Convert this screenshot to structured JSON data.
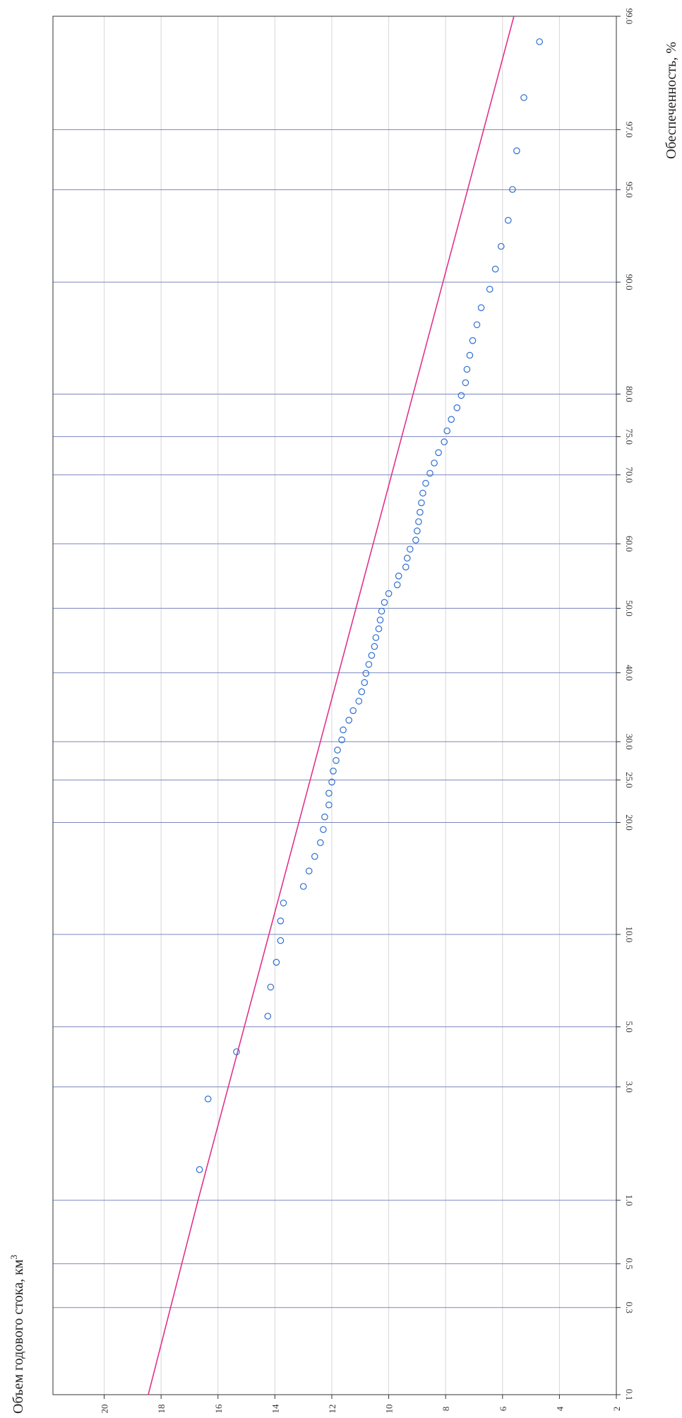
{
  "chart_data": {
    "type": "scatter",
    "orientation": "rotated-90",
    "xlabel": "Обеспеченность, %",
    "ylabel": "Объем годового стока, км",
    "ylabel_superscript": "3",
    "x_scale": "probability",
    "x_ticks": [
      0.1,
      0.3,
      0.5,
      1.0,
      3.0,
      5.0,
      10.0,
      20.0,
      25.0,
      30.0,
      40.0,
      50.0,
      60.0,
      70.0,
      75.0,
      80.0,
      90.0,
      95.0,
      97.0,
      99.0
    ],
    "x_tick_labels": [
      "0.1",
      "0.3",
      "0.5",
      "1.0",
      "3.0",
      "5.0",
      "10.0",
      "20.0",
      "25.0",
      "30.0",
      "40.0",
      "50.0",
      "60.0",
      "70.0",
      "75.0",
      "80.0",
      "90.0",
      "95.0",
      "97.0",
      "99.0"
    ],
    "xlim": [
      0.1,
      99.0
    ],
    "y_ticks": [
      2,
      4,
      6,
      8,
      10,
      12,
      14,
      16,
      18,
      20
    ],
    "y_tick_labels": [
      "2",
      "4",
      "6",
      "8",
      "10",
      "12",
      "14",
      "16",
      "18",
      "20"
    ],
    "ylim": [
      2,
      21.8
    ],
    "grid": true,
    "colors": {
      "points": "#2f6fd0",
      "fit_line": "#e0338a",
      "major_grid": "#7a86bf",
      "minor_grid": "#d6d6d6"
    },
    "fit_line": [
      {
        "p": 0.1,
        "v": 18.45
      },
      {
        "p": 1.0,
        "v": 16.7
      },
      {
        "p": 99.0,
        "v": 5.6
      }
    ],
    "series": [
      {
        "x": [
          1.37,
          2.69,
          4.07,
          5.45,
          6.83,
          8.21,
          9.58,
          10.96,
          12.34,
          13.72,
          15.09,
          16.47,
          17.85,
          19.23,
          20.61,
          21.98,
          23.36,
          24.74,
          26.12,
          27.49,
          28.87,
          30.25,
          31.63,
          33.01,
          34.38,
          35.76,
          37.14,
          38.52,
          39.9,
          41.27,
          42.65,
          44.03,
          45.41,
          46.78,
          48.16,
          49.54,
          50.92,
          52.3,
          53.67,
          55.05,
          56.43,
          57.81,
          59.18,
          60.56,
          61.94,
          63.32,
          64.7,
          66.07,
          67.45,
          68.83,
          70.21,
          71.59,
          72.96,
          74.34,
          75.72,
          77.1,
          78.47,
          79.85,
          81.23,
          82.61,
          83.99,
          85.36,
          86.74,
          88.12,
          89.5,
          90.87,
          92.25,
          93.63,
          95.01,
          96.39,
          97.76,
          98.7
        ],
        "y": [
          16.65,
          16.35,
          15.35,
          14.25,
          14.15,
          13.95,
          13.8,
          13.8,
          13.7,
          13.0,
          12.8,
          12.6,
          12.4,
          12.3,
          12.25,
          12.1,
          12.1,
          12.0,
          11.95,
          11.85,
          11.8,
          11.65,
          11.6,
          11.4,
          11.25,
          11.05,
          10.95,
          10.85,
          10.8,
          10.7,
          10.6,
          10.5,
          10.45,
          10.35,
          10.3,
          10.25,
          10.15,
          10.0,
          9.7,
          9.65,
          9.4,
          9.35,
          9.25,
          9.05,
          9.0,
          8.95,
          8.9,
          8.85,
          8.8,
          8.7,
          8.55,
          8.4,
          8.25,
          8.05,
          7.95,
          7.8,
          7.6,
          7.45,
          7.3,
          7.25,
          7.15,
          7.05,
          6.9,
          6.75,
          6.45,
          6.25,
          6.05,
          5.8,
          5.65,
          5.5,
          5.25,
          4.7
        ]
      }
    ]
  }
}
